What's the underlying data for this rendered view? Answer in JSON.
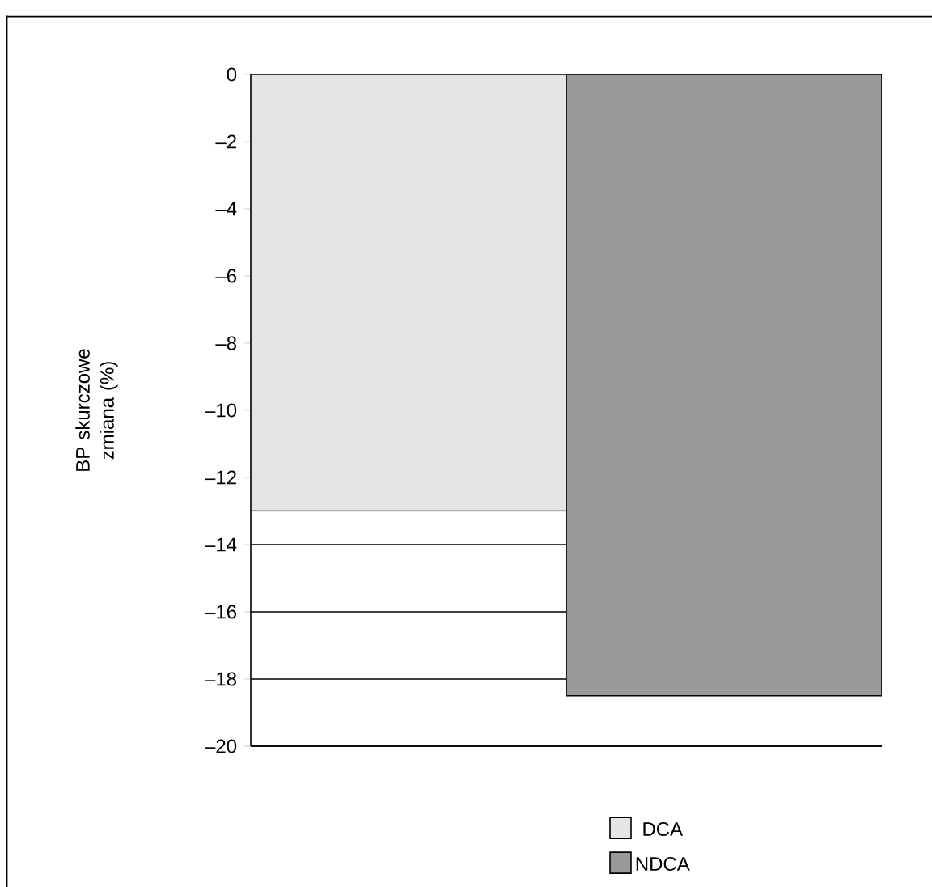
{
  "chart_data": {
    "type": "bar",
    "ylabel": "BP skurczowe zmiana (%)",
    "categories": [
      null
    ],
    "series": [
      {
        "name": "DCA",
        "color": "#e5e5e5",
        "values": [
          -13
        ]
      },
      {
        "name": "NDCA",
        "color": "#999999",
        "values": [
          -18.5
        ]
      }
    ],
    "ylim": [
      -20,
      0
    ],
    "yticks": [
      0,
      {
        "value": -2,
        "label": "–2"
      },
      {
        "value": -4,
        "label": "–4"
      },
      {
        "value": -6,
        "label": "–6"
      },
      {
        "value": -8,
        "label": "–8"
      },
      {
        "value": -10,
        "label": "–10"
      },
      {
        "value": -12,
        "label": "–12"
      },
      {
        "value": -14,
        "label": "–14"
      },
      {
        "value": -16,
        "label": "–16"
      },
      {
        "value": -18,
        "label": "–18"
      },
      {
        "value": -20,
        "label": "–20"
      }
    ],
    "grid": "y",
    "legend": "bottom right"
  }
}
